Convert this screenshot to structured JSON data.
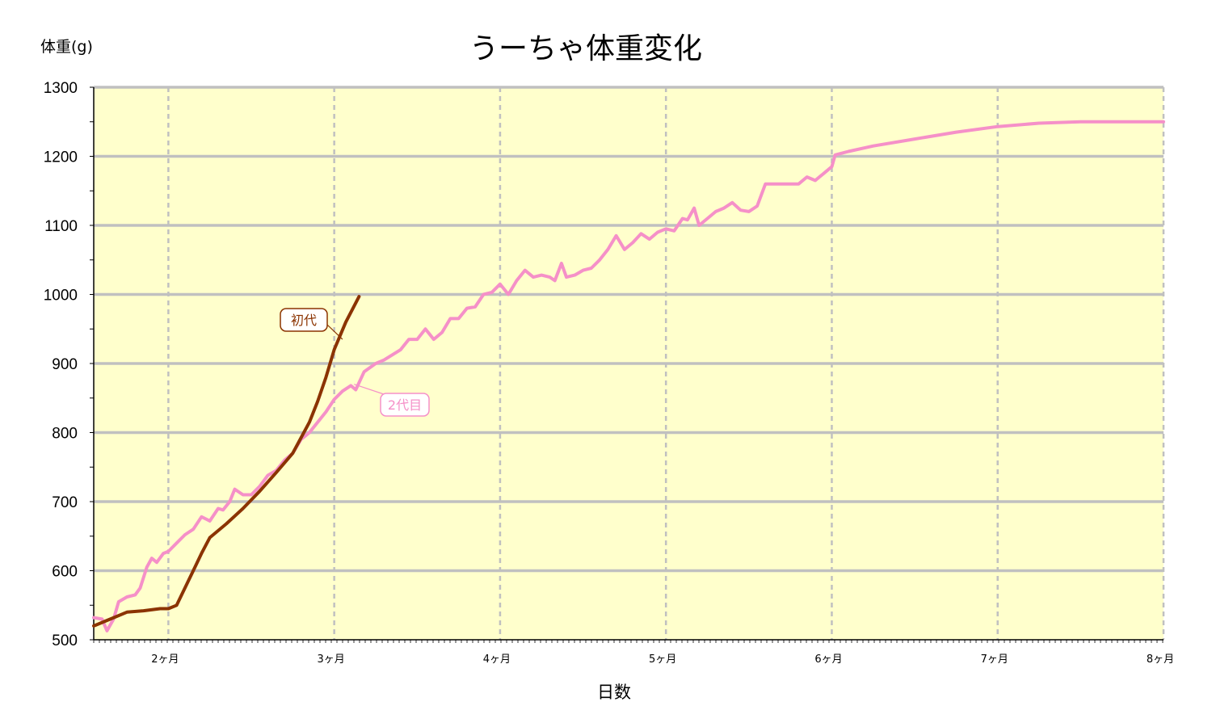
{
  "chart_data": {
    "type": "line",
    "title": "うーちゃ体重変化",
    "xlabel": "日数",
    "ylabel": "体重(g)",
    "ylim": [
      500,
      1300
    ],
    "yticks": [
      500,
      600,
      700,
      800,
      900,
      1000,
      1100,
      1200,
      1300
    ],
    "xlim": [
      1.55,
      8.0
    ],
    "xticks": [
      {
        "x": 2,
        "label": "2ヶ月"
      },
      {
        "x": 3,
        "label": "3ヶ月"
      },
      {
        "x": 4,
        "label": "4ヶ月"
      },
      {
        "x": 5,
        "label": "5ヶ月"
      },
      {
        "x": 6,
        "label": "6ヶ月"
      },
      {
        "x": 7,
        "label": "7ヶ月"
      },
      {
        "x": 8,
        "label": "8ヶ月"
      }
    ],
    "grid": true,
    "colors": {
      "plot_bg": "#ffffcc",
      "grid": "#c0c0c0",
      "series_1": "#8b3300",
      "series_2": "#f590c8"
    },
    "series": [
      {
        "name": "初代",
        "color": "#8b3300",
        "points": [
          [
            1.55,
            520
          ],
          [
            1.65,
            530
          ],
          [
            1.75,
            540
          ],
          [
            1.85,
            542
          ],
          [
            1.95,
            545
          ],
          [
            2.0,
            545
          ],
          [
            2.05,
            550
          ],
          [
            2.1,
            575
          ],
          [
            2.15,
            600
          ],
          [
            2.2,
            625
          ],
          [
            2.25,
            648
          ],
          [
            2.35,
            668
          ],
          [
            2.45,
            690
          ],
          [
            2.55,
            715
          ],
          [
            2.65,
            742
          ],
          [
            2.75,
            770
          ],
          [
            2.85,
            815
          ],
          [
            2.9,
            845
          ],
          [
            2.95,
            880
          ],
          [
            3.0,
            920
          ],
          [
            3.07,
            960
          ],
          [
            3.15,
            997
          ]
        ]
      },
      {
        "name": "2代目",
        "color": "#f590c8",
        "points": [
          [
            1.55,
            532
          ],
          [
            1.6,
            530
          ],
          [
            1.63,
            513
          ],
          [
            1.67,
            530
          ],
          [
            1.7,
            555
          ],
          [
            1.75,
            562
          ],
          [
            1.8,
            565
          ],
          [
            1.83,
            575
          ],
          [
            1.87,
            605
          ],
          [
            1.9,
            618
          ],
          [
            1.93,
            612
          ],
          [
            1.97,
            625
          ],
          [
            2.0,
            628
          ],
          [
            2.05,
            640
          ],
          [
            2.1,
            652
          ],
          [
            2.15,
            660
          ],
          [
            2.2,
            678
          ],
          [
            2.25,
            672
          ],
          [
            2.3,
            690
          ],
          [
            2.33,
            688
          ],
          [
            2.37,
            700
          ],
          [
            2.4,
            718
          ],
          [
            2.45,
            710
          ],
          [
            2.5,
            710
          ],
          [
            2.55,
            722
          ],
          [
            2.6,
            738
          ],
          [
            2.65,
            745
          ],
          [
            2.7,
            760
          ],
          [
            2.75,
            770
          ],
          [
            2.8,
            790
          ],
          [
            2.85,
            800
          ],
          [
            2.9,
            815
          ],
          [
            2.95,
            830
          ],
          [
            3.0,
            848
          ],
          [
            3.05,
            860
          ],
          [
            3.1,
            868
          ],
          [
            3.13,
            862
          ],
          [
            3.18,
            888
          ],
          [
            3.25,
            900
          ],
          [
            3.3,
            905
          ],
          [
            3.4,
            920
          ],
          [
            3.45,
            935
          ],
          [
            3.5,
            935
          ],
          [
            3.55,
            950
          ],
          [
            3.6,
            935
          ],
          [
            3.65,
            945
          ],
          [
            3.7,
            965
          ],
          [
            3.75,
            965
          ],
          [
            3.8,
            980
          ],
          [
            3.85,
            982
          ],
          [
            3.9,
            1000
          ],
          [
            3.95,
            1003
          ],
          [
            4.0,
            1015
          ],
          [
            4.05,
            1000
          ],
          [
            4.1,
            1020
          ],
          [
            4.15,
            1035
          ],
          [
            4.2,
            1025
          ],
          [
            4.25,
            1028
          ],
          [
            4.3,
            1025
          ],
          [
            4.33,
            1020
          ],
          [
            4.37,
            1045
          ],
          [
            4.4,
            1025
          ],
          [
            4.45,
            1028
          ],
          [
            4.5,
            1035
          ],
          [
            4.55,
            1038
          ],
          [
            4.6,
            1050
          ],
          [
            4.65,
            1065
          ],
          [
            4.7,
            1085
          ],
          [
            4.75,
            1065
          ],
          [
            4.8,
            1075
          ],
          [
            4.85,
            1088
          ],
          [
            4.9,
            1080
          ],
          [
            4.95,
            1090
          ],
          [
            5.0,
            1095
          ],
          [
            5.05,
            1092
          ],
          [
            5.1,
            1110
          ],
          [
            5.13,
            1108
          ],
          [
            5.17,
            1125
          ],
          [
            5.2,
            1100
          ],
          [
            5.25,
            1110
          ],
          [
            5.3,
            1120
          ],
          [
            5.35,
            1125
          ],
          [
            5.4,
            1133
          ],
          [
            5.45,
            1122
          ],
          [
            5.5,
            1120
          ],
          [
            5.55,
            1128
          ],
          [
            5.6,
            1160
          ],
          [
            5.7,
            1160
          ],
          [
            5.8,
            1160
          ],
          [
            5.85,
            1170
          ],
          [
            5.9,
            1165
          ],
          [
            5.95,
            1175
          ],
          [
            6.0,
            1185
          ],
          [
            6.02,
            1202
          ],
          [
            6.1,
            1207
          ],
          [
            6.25,
            1215
          ],
          [
            6.5,
            1225
          ],
          [
            6.75,
            1235
          ],
          [
            7.0,
            1243
          ],
          [
            7.25,
            1248
          ],
          [
            7.5,
            1250
          ],
          [
            7.75,
            1250
          ],
          [
            8.0,
            1250
          ]
        ]
      }
    ],
    "annotations": [
      {
        "text": "初代",
        "series": "初代"
      },
      {
        "text": "2代目",
        "series": "2代目"
      }
    ]
  }
}
